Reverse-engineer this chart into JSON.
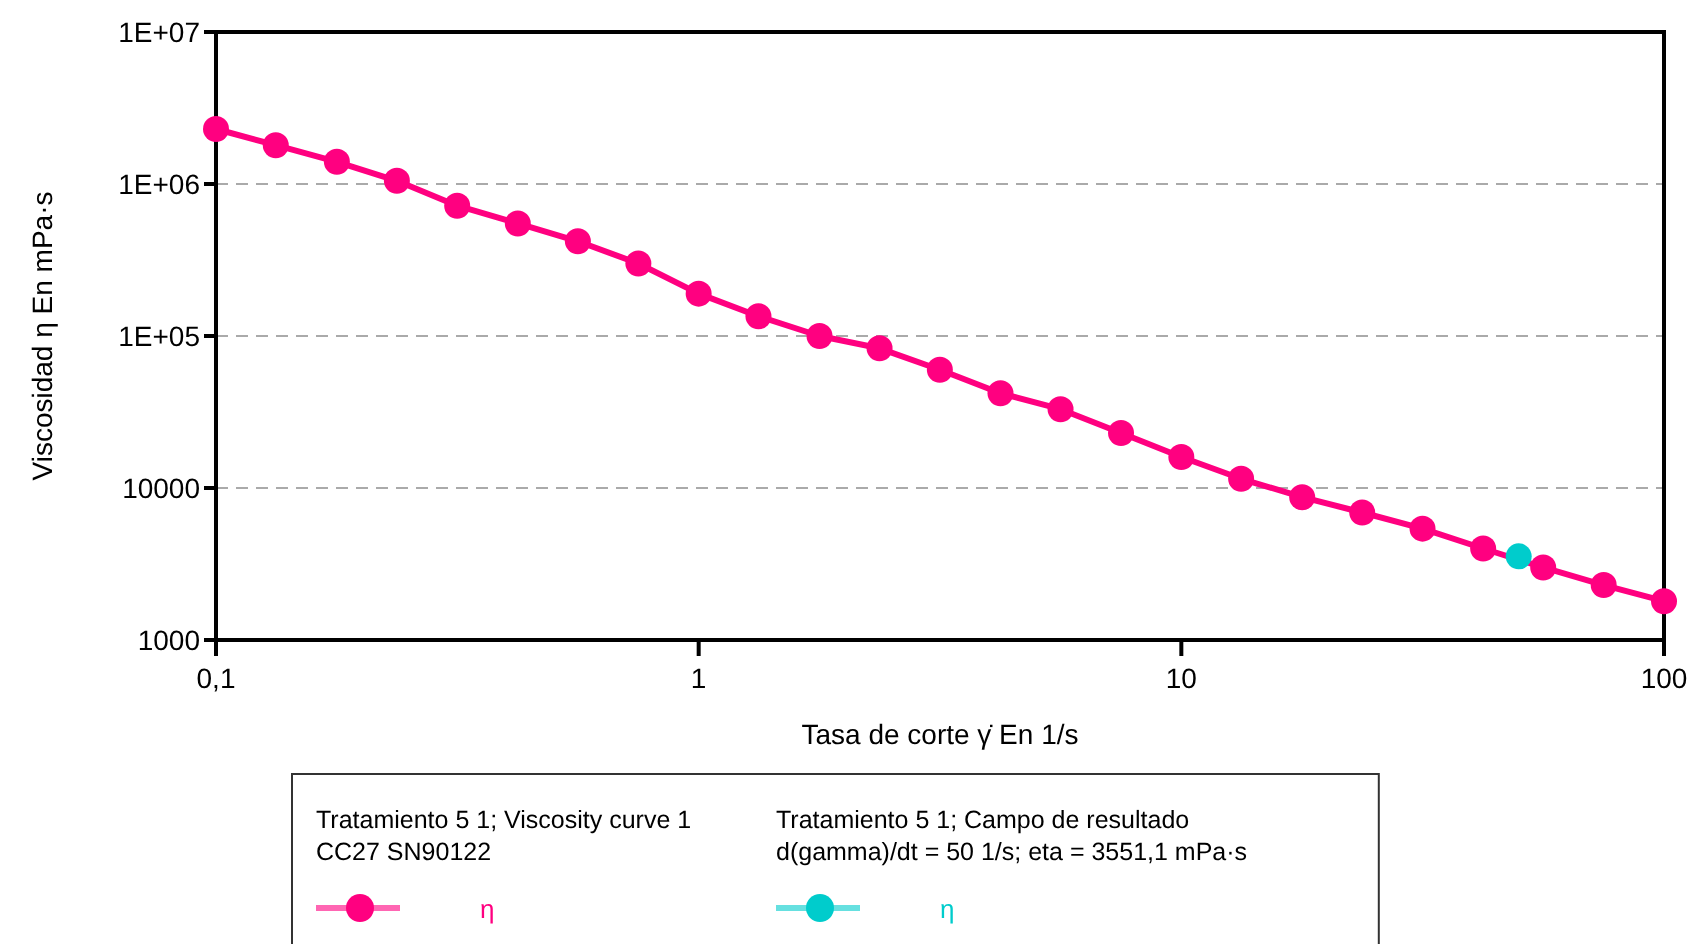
{
  "chart_data": {
    "type": "line",
    "xlabel": "Tasa de corte γ̇  En 1/s",
    "ylabel": "Viscosidad η  En mPa·s",
    "log": "xy",
    "xlim": [
      0.1,
      100
    ],
    "xticks": [
      {
        "value": 0.1,
        "label": "0,1"
      },
      1,
      10,
      100
    ],
    "ylim": [
      1000,
      10000000
    ],
    "yticks": [
      1000,
      10000,
      {
        "value": 100000,
        "label": "1E+05"
      },
      {
        "value": 1000000,
        "label": "1E+06"
      },
      {
        "value": 10000000,
        "label": "1E+07"
      }
    ],
    "grid": "y",
    "marker": "circle",
    "legend": "bottom",
    "annotations": [
      "Tratamiento 5 1; Viscosity curve 1\nCC27 SN90122",
      "Tratamiento 5 1; Campo de resultado\nd(gamma)/dt = 50 1/s; eta = 3551,1 mPa·s"
    ],
    "series": [
      {
        "name": "η",
        "color": "#ff0080",
        "x": [
          0.1,
          0.133,
          0.178,
          0.237,
          0.316,
          0.422,
          0.562,
          0.75,
          1,
          1.33,
          1.78,
          2.37,
          3.16,
          4.22,
          5.62,
          7.5,
          10,
          13.3,
          17.8,
          23.7,
          31.6,
          42.2,
          56.2,
          75,
          100
        ],
        "values": [
          2300000,
          1800000,
          1400000,
          1050000,
          720000,
          550000,
          420000,
          300000,
          190000,
          135000,
          100000,
          83000,
          60000,
          42000,
          33000,
          23000,
          16000,
          11500,
          8700,
          6900,
          5400,
          4000,
          3000,
          2300,
          1800
        ]
      },
      {
        "name": "η",
        "color": "#00cccc",
        "x": [
          50
        ],
        "values": [
          3551.1
        ]
      }
    ]
  }
}
